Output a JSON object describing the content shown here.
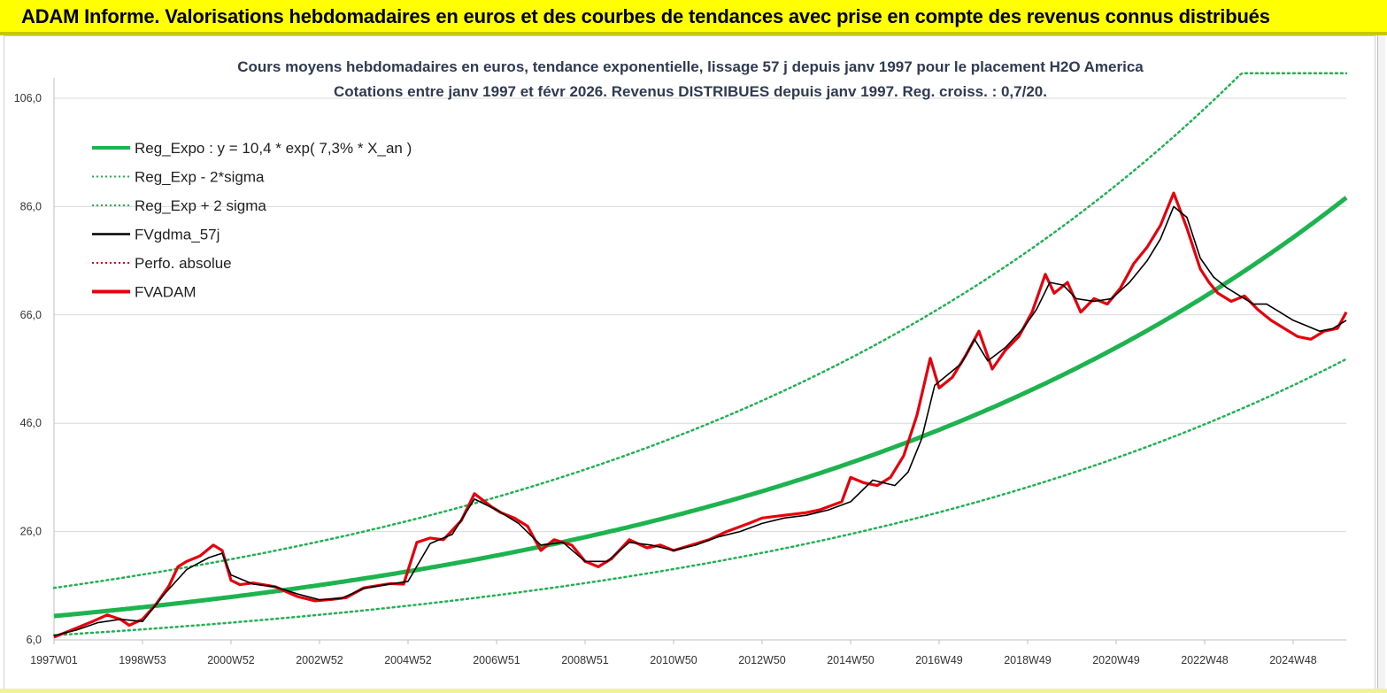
{
  "header": {
    "title": "ADAM Informe. Valorisations hebdomadaires en euros et des courbes de tendances avec prise en compte des revenus connus distribués"
  },
  "colors": {
    "header_bg": "#ffff00",
    "reg": "#1db34f",
    "fv": "#e8000b",
    "avg": "#000000",
    "grid": "#d9d9d9"
  },
  "chart_data": {
    "type": "line",
    "title": "Cours moyens hebdomadaires en euros, tendance exponentielle, lissage 57 j depuis janv 1997 pour le placement H2O America",
    "subtitle": "Cotations entre janv 1997 et févr 2026. Revenus DISTRIBUES depuis janv 1997. Reg. croiss. : 0,7/20.",
    "xlabel": "",
    "ylabel": "",
    "ylim": [
      6,
      108
    ],
    "xlim": [
      1997.0,
      2026.2
    ],
    "grid": true,
    "legend_position": "top-left",
    "y_ticks": [
      "106,0",
      "86,0",
      "66,0",
      "46,0",
      "26,0",
      "6,0"
    ],
    "y_tick_values": [
      106,
      86,
      66,
      46,
      26,
      6
    ],
    "x_ticks": [
      "1997W01",
      "1998W53",
      "2000W52",
      "2002W52",
      "2004W52",
      "2006W51",
      "2008W51",
      "2010W50",
      "2012W50",
      "2014W50",
      "2016W49",
      "2018W49",
      "2020W49",
      "2022W48",
      "2024W48"
    ],
    "x_tick_years": [
      1997.0,
      1999.0,
      2001.0,
      2003.0,
      2005.0,
      2007.0,
      2009.0,
      2011.0,
      2013.0,
      2015.0,
      2017.0,
      2019.0,
      2021.0,
      2023.0,
      2025.0
    ],
    "legend": [
      {
        "label": "Reg_Expo : y = 10,4 * exp( 7,3% *  X_an )",
        "color": "#1db34f",
        "style": "solid-thick"
      },
      {
        "label": "Reg_Exp - 2*sigma",
        "color": "#1db34f",
        "style": "dotted"
      },
      {
        "label": "Reg_Exp + 2 sigma",
        "color": "#1db34f",
        "style": "dotted"
      },
      {
        "label": "FVgdma_57j",
        "color": "#000000",
        "style": "solid"
      },
      {
        "label": "Perfo. absolue",
        "color": "#e8000b",
        "style": "dotted"
      },
      {
        "label": "FVADAM",
        "color": "#e8000b",
        "style": "solid-thick"
      }
    ],
    "regression": {
      "a": 10.4,
      "rate": 0.073,
      "sigma_factor_low": 0.66,
      "sigma_factor_high": 1.5,
      "upper_cap": 110.6
    },
    "series": [
      {
        "name": "FVADAM",
        "x": [
          1997.0,
          1997.3,
          1997.6,
          1997.9,
          1998.2,
          1998.5,
          1998.7,
          1999.0,
          1999.3,
          1999.6,
          1999.8,
          2000.0,
          2000.3,
          2000.6,
          2000.8,
          2001.0,
          2001.2,
          2001.5,
          2002.0,
          2002.5,
          2002.9,
          2003.3,
          2003.6,
          2004.0,
          2004.3,
          2004.6,
          2004.9,
          2005.2,
          2005.5,
          2005.8,
          2006.2,
          2006.5,
          2006.9,
          2007.1,
          2007.4,
          2007.7,
          2008.0,
          2008.3,
          2008.7,
          2009.0,
          2009.3,
          2009.6,
          2010.0,
          2010.4,
          2010.7,
          2011.0,
          2011.4,
          2011.8,
          2012.2,
          2012.7,
          2013.0,
          2013.5,
          2014.0,
          2014.3,
          2014.8,
          2015.0,
          2015.3,
          2015.6,
          2015.9,
          2016.2,
          2016.5,
          2016.8,
          2017.0,
          2017.3,
          2017.6,
          2017.9,
          2018.2,
          2018.5,
          2018.8,
          2019.1,
          2019.4,
          2019.6,
          2019.9,
          2020.2,
          2020.5,
          2020.8,
          2021.1,
          2021.4,
          2021.7,
          2022.0,
          2022.3,
          2022.6,
          2022.9,
          2023.1,
          2023.3,
          2023.6,
          2023.9,
          2024.2,
          2024.5,
          2024.8,
          2025.1,
          2025.4,
          2025.7,
          2026.0,
          2026.2
        ],
        "y": [
          6.5,
          7.5,
          8.5,
          9.5,
          10.6,
          9.8,
          8.7,
          9.8,
          12.5,
          16.0,
          19.5,
          20.5,
          21.5,
          23.5,
          22.5,
          17.0,
          16.2,
          16.5,
          15.8,
          14.0,
          13.2,
          13.5,
          13.8,
          15.6,
          16.0,
          16.4,
          16.3,
          24.0,
          24.8,
          24.5,
          28.0,
          33.0,
          30.5,
          29.5,
          28.5,
          27.0,
          22.5,
          24.5,
          23.5,
          20.5,
          19.5,
          21.0,
          24.5,
          23.0,
          23.5,
          22.5,
          23.5,
          24.5,
          26.0,
          27.5,
          28.5,
          29.0,
          29.5,
          30.0,
          31.5,
          36.0,
          35.0,
          34.5,
          36.0,
          40.0,
          47.5,
          58.0,
          52.5,
          54.5,
          58.5,
          63.0,
          56.0,
          59.5,
          62.0,
          66.5,
          73.5,
          70.0,
          72.0,
          66.5,
          69.0,
          68.0,
          71.0,
          75.5,
          78.5,
          82.5,
          88.5,
          82.0,
          74.5,
          72.0,
          70.0,
          68.5,
          69.5,
          67.0,
          65.0,
          63.5,
          62.0,
          61.5,
          63.0,
          63.5,
          66.5
        ]
      },
      {
        "name": "FVgdma_57j",
        "x": [
          1997.0,
          1997.5,
          1998.0,
          1998.5,
          1999.0,
          1999.5,
          2000.0,
          2000.5,
          2000.8,
          2001.0,
          2001.5,
          2002.0,
          2002.5,
          2003.0,
          2003.5,
          2004.0,
          2004.5,
          2005.0,
          2005.5,
          2006.0,
          2006.5,
          2007.0,
          2007.5,
          2008.0,
          2008.5,
          2009.0,
          2009.5,
          2010.0,
          2010.5,
          2011.0,
          2011.5,
          2012.0,
          2012.5,
          2013.0,
          2013.5,
          2014.0,
          2014.5,
          2015.0,
          2015.5,
          2016.0,
          2016.3,
          2016.6,
          2016.9,
          2017.2,
          2017.5,
          2017.8,
          2018.1,
          2018.5,
          2018.9,
          2019.2,
          2019.5,
          2019.8,
          2020.1,
          2020.5,
          2020.9,
          2021.3,
          2021.7,
          2022.0,
          2022.3,
          2022.6,
          2022.9,
          2023.2,
          2023.5,
          2023.8,
          2024.1,
          2024.4,
          2024.7,
          2025.0,
          2025.3,
          2025.6,
          2025.9,
          2026.2
        ],
        "y": [
          6.8,
          7.8,
          9.2,
          9.8,
          9.4,
          14.5,
          19.0,
          21.2,
          22.0,
          18.0,
          16.3,
          15.8,
          14.5,
          13.4,
          13.7,
          15.5,
          16.2,
          16.8,
          23.8,
          25.5,
          32.0,
          30.0,
          27.5,
          23.5,
          24.0,
          20.5,
          20.5,
          24.0,
          23.5,
          22.5,
          23.5,
          25.0,
          26.0,
          27.5,
          28.5,
          29.0,
          30.0,
          31.5,
          35.5,
          34.5,
          37.0,
          43.0,
          53.0,
          55.0,
          57.0,
          61.5,
          57.5,
          60.0,
          63.5,
          67.0,
          72.0,
          71.5,
          69.0,
          68.5,
          69.0,
          72.0,
          76.0,
          80.0,
          86.0,
          84.0,
          76.5,
          73.0,
          71.0,
          69.5,
          68.0,
          68.0,
          66.5,
          65.0,
          64.0,
          63.0,
          63.5,
          65.0
        ]
      }
    ]
  }
}
